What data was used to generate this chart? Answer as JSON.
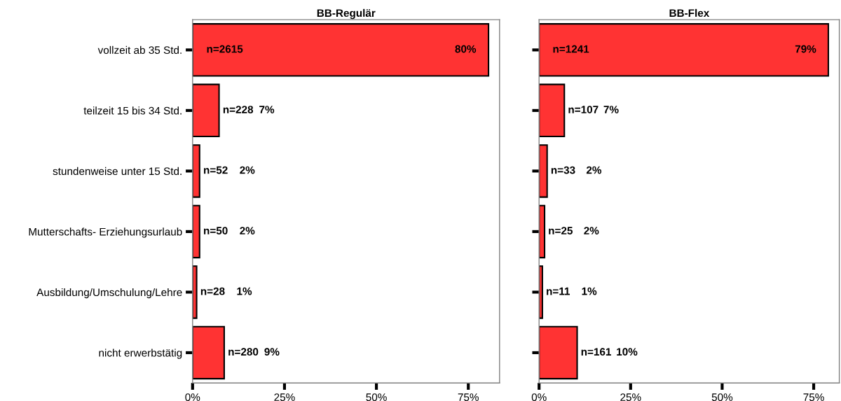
{
  "chart_data": [
    {
      "type": "bar",
      "orientation": "horizontal",
      "title": "BB-Regulär",
      "categories": [
        "vollzeit ab 35 Std.",
        "teilzeit 15 bis 34 Std.",
        "stundenweise unter 15 Std.",
        "Mutterschafts- Erziehungsurlaub",
        "Ausbildung/Umschulung/Lehre",
        "nicht erwerbstätig"
      ],
      "values": [
        80.5,
        7.2,
        1.9,
        1.9,
        1.1,
        8.6
      ],
      "color": "#ff3333",
      "xlim": [
        0,
        83.5
      ],
      "xticks": [
        {
          "value": 0,
          "label": "0%"
        },
        {
          "value": 25,
          "label": "25%"
        },
        {
          "value": 50,
          "label": "50%"
        },
        {
          "value": 75,
          "label": "75%"
        }
      ],
      "annotations": [
        "n=2615",
        "n=228",
        "n=52",
        "n=50",
        "n=28",
        "n=280",
        "80%",
        "7%",
        "2%",
        "2%",
        "1%",
        "9%"
      ]
    },
    {
      "type": "bar",
      "orientation": "horizontal",
      "title": "BB-Flex",
      "categories": [
        "vollzeit ab 35 Std.",
        "teilzeit 15 bis 34 Std.",
        "stundenweise unter 15 Std.",
        "Mutterschafts- Erziehungsurlaub",
        "Ausbildung/Umschulung/Lehre",
        "nicht erwerbstätig"
      ],
      "values": [
        79.0,
        6.9,
        2.2,
        1.5,
        0.9,
        10.4
      ],
      "color": "#ff3333",
      "xlim": [
        0,
        82
      ],
      "xticks": [
        {
          "value": 0,
          "label": "0%"
        },
        {
          "value": 25,
          "label": "25%"
        },
        {
          "value": 50,
          "label": "50%"
        },
        {
          "value": 75,
          "label": "75%"
        }
      ],
      "tick_labels": "x",
      "annotations": [
        "n=1241",
        "n=107",
        "n=33",
        "n=25",
        "n=11",
        "n=161",
        "79%",
        "7%",
        "2%",
        "2%",
        "1%",
        "10%"
      ]
    }
  ]
}
